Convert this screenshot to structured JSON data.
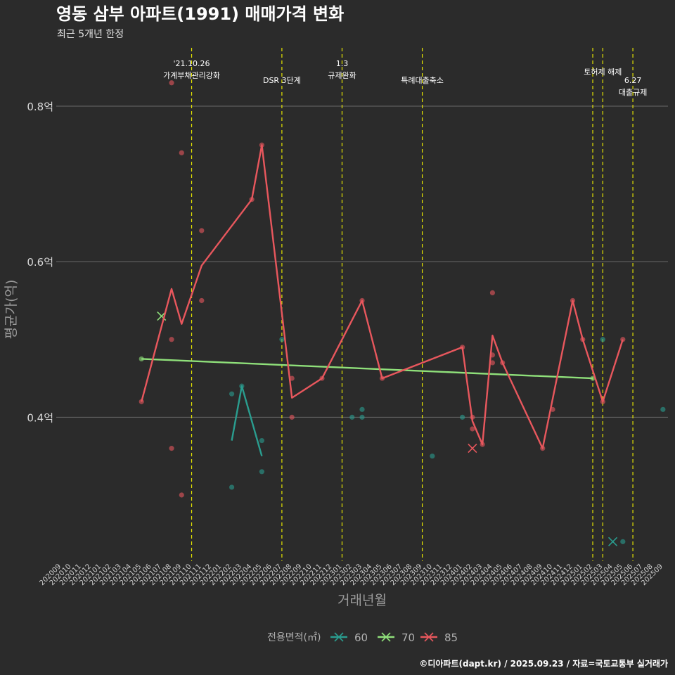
{
  "chart_data": {
    "type": "line",
    "title": "영동 삼부 아파트(1991) 매매가격 변화",
    "subtitle": "최근 5개년 한정",
    "xlabel": "거래년월",
    "ylabel": "평균가(억)",
    "categories": [
      "202009",
      "202010",
      "202011",
      "202012",
      "202101",
      "202102",
      "202103",
      "202104",
      "202105",
      "202106",
      "202107",
      "202108",
      "202109",
      "202110",
      "202111",
      "202112",
      "202201",
      "202202",
      "202203",
      "202204",
      "202205",
      "202206",
      "202207",
      "202208",
      "202209",
      "202210",
      "202211",
      "202212",
      "202301",
      "202302",
      "202303",
      "202304",
      "202305",
      "202306",
      "202307",
      "202308",
      "202309",
      "202310",
      "202311",
      "202312",
      "202401",
      "202402",
      "202403",
      "202404",
      "202405",
      "202406",
      "202407",
      "202408",
      "202409",
      "202410",
      "202411",
      "202412",
      "202501",
      "202502",
      "202503",
      "202504",
      "202505",
      "202506",
      "202507",
      "202508",
      "202509"
    ],
    "yticks": [
      {
        "value": 0.4,
        "label": "0.4억"
      },
      {
        "value": 0.6,
        "label": "0.6억"
      },
      {
        "value": 0.8,
        "label": "0.8억"
      }
    ],
    "ylim": [
      0.215,
      0.875
    ],
    "grid": true,
    "series": [
      {
        "name": "60",
        "color": "#2a9d8f",
        "line": [
          {
            "x": "202202",
            "y": 0.37
          },
          {
            "x": "202203",
            "y": 0.44
          },
          {
            "x": "202205",
            "y": 0.35
          }
        ],
        "points": [
          {
            "x": "202202",
            "y": 0.43
          },
          {
            "x": "202202",
            "y": 0.31
          },
          {
            "x": "202203",
            "y": 0.44
          },
          {
            "x": "202205",
            "y": 0.37
          },
          {
            "x": "202205",
            "y": 0.33
          },
          {
            "x": "202207",
            "y": 0.5
          },
          {
            "x": "202302",
            "y": 0.4
          },
          {
            "x": "202303",
            "y": 0.41
          },
          {
            "x": "202303",
            "y": 0.4
          },
          {
            "x": "202310",
            "y": 0.35
          },
          {
            "x": "202401",
            "y": 0.4
          },
          {
            "x": "202503",
            "y": 0.5
          },
          {
            "x": "202505",
            "y": 0.24
          },
          {
            "x": "202509",
            "y": 0.41
          }
        ],
        "crosses": [
          {
            "x": "202504",
            "y": 0.24
          }
        ]
      },
      {
        "name": "70",
        "color": "#8fe07a",
        "line": [
          {
            "x": "202105",
            "y": 0.475
          },
          {
            "x": "202502",
            "y": 0.45
          }
        ],
        "points": [
          {
            "x": "202105",
            "y": 0.475
          },
          {
            "x": "202502",
            "y": 0.45
          }
        ],
        "crosses": [
          {
            "x": "202107",
            "y": 0.53
          }
        ]
      },
      {
        "name": "85",
        "color": "#e8575d",
        "line": [
          {
            "x": "202105",
            "y": 0.42
          },
          {
            "x": "202108",
            "y": 0.565
          },
          {
            "x": "202109",
            "y": 0.52
          },
          {
            "x": "202111",
            "y": 0.595
          },
          {
            "x": "202204",
            "y": 0.68
          },
          {
            "x": "202205",
            "y": 0.75
          },
          {
            "x": "202208",
            "y": 0.425
          },
          {
            "x": "202211",
            "y": 0.45
          },
          {
            "x": "202303",
            "y": 0.55
          },
          {
            "x": "202305",
            "y": 0.45
          },
          {
            "x": "202401",
            "y": 0.49
          },
          {
            "x": "202402",
            "y": 0.395
          },
          {
            "x": "202403",
            "y": 0.365
          },
          {
            "x": "202404",
            "y": 0.505
          },
          {
            "x": "202405",
            "y": 0.47
          },
          {
            "x": "202409",
            "y": 0.36
          },
          {
            "x": "202412",
            "y": 0.55
          },
          {
            "x": "202501",
            "y": 0.5
          },
          {
            "x": "202503",
            "y": 0.42
          },
          {
            "x": "202505",
            "y": 0.5
          }
        ],
        "points": [
          {
            "x": "202105",
            "y": 0.42
          },
          {
            "x": "202108",
            "y": 0.83
          },
          {
            "x": "202108",
            "y": 0.5
          },
          {
            "x": "202108",
            "y": 0.36
          },
          {
            "x": "202109",
            "y": 0.74
          },
          {
            "x": "202109",
            "y": 0.3
          },
          {
            "x": "202111",
            "y": 0.64
          },
          {
            "x": "202111",
            "y": 0.55
          },
          {
            "x": "202204",
            "y": 0.68
          },
          {
            "x": "202205",
            "y": 0.75
          },
          {
            "x": "202208",
            "y": 0.45
          },
          {
            "x": "202208",
            "y": 0.4
          },
          {
            "x": "202211",
            "y": 0.45
          },
          {
            "x": "202303",
            "y": 0.55
          },
          {
            "x": "202305",
            "y": 0.45
          },
          {
            "x": "202401",
            "y": 0.49
          },
          {
            "x": "202402",
            "y": 0.4
          },
          {
            "x": "202402",
            "y": 0.385
          },
          {
            "x": "202403",
            "y": 0.365
          },
          {
            "x": "202404",
            "y": 0.56
          },
          {
            "x": "202404",
            "y": 0.48
          },
          {
            "x": "202404",
            "y": 0.47
          },
          {
            "x": "202405",
            "y": 0.47
          },
          {
            "x": "202409",
            "y": 0.36
          },
          {
            "x": "202410",
            "y": 0.41
          },
          {
            "x": "202412",
            "y": 0.55
          },
          {
            "x": "202501",
            "y": 0.5
          },
          {
            "x": "202503",
            "y": 0.42
          },
          {
            "x": "202505",
            "y": 0.5
          }
        ],
        "crosses": [
          {
            "x": "202402",
            "y": 0.36
          }
        ]
      }
    ],
    "annotations": [
      {
        "x": "202110",
        "lines": [
          "'21.10.26",
          "가계부채관리강화"
        ],
        "tier": 0
      },
      {
        "x": "202207",
        "lines": [
          "DSR 3단계"
        ],
        "tier": 1
      },
      {
        "x": "202301",
        "lines": [
          "1.3",
          "규제완화"
        ],
        "tier": 0
      },
      {
        "x": "202309",
        "lines": [
          "특례대출축소"
        ],
        "tier": 1
      },
      {
        "x": "202502",
        "lines": [],
        "tier": 0
      },
      {
        "x": "202503",
        "lines": [
          "토허제 해제"
        ],
        "tier": 0.5
      },
      {
        "x": "202506",
        "lines": [
          "6.27",
          "대출규제"
        ],
        "tier": 1
      }
    ],
    "legend": {
      "title": "전용면적(㎡)",
      "position": "bottom",
      "items": [
        "60",
        "70",
        "85"
      ]
    }
  },
  "caption": "©디아파트(dapt.kr) / 2025.09.23 / 자료=국토교통부 실거래가",
  "annotation_color": "#e6e600",
  "grid_color": "#6a6a6a"
}
